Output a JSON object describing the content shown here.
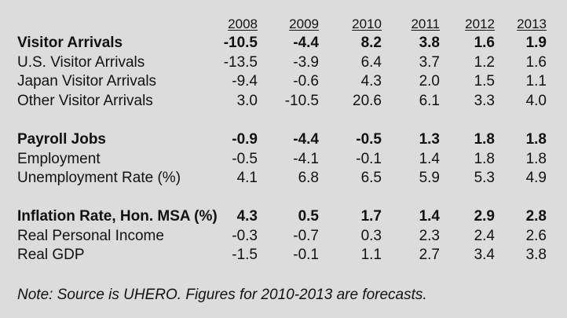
{
  "chart_data": {
    "type": "table",
    "columns": [
      "2008",
      "2009",
      "2010",
      "2011",
      "2012",
      "2013"
    ],
    "groups": [
      {
        "rows": [
          {
            "label": "Visitor Arrivals",
            "bold": true,
            "values": [
              "-10.5",
              "-4.4",
              "8.2",
              "3.8",
              "1.6",
              "1.9"
            ]
          },
          {
            "label": "U.S. Visitor Arrivals",
            "bold": false,
            "values": [
              "-13.5",
              "-3.9",
              "6.4",
              "3.7",
              "1.2",
              "1.6"
            ]
          },
          {
            "label": "Japan Visitor Arrivals",
            "bold": false,
            "values": [
              "-9.4",
              "-0.6",
              "4.3",
              "2.0",
              "1.5",
              "1.1"
            ]
          },
          {
            "label": "Other Visitor Arrivals",
            "bold": false,
            "values": [
              "3.0",
              "-10.5",
              "20.6",
              "6.1",
              "3.3",
              "4.0"
            ]
          }
        ]
      },
      {
        "rows": [
          {
            "label": "Payroll Jobs",
            "bold": true,
            "values": [
              "-0.9",
              "-4.4",
              "-0.5",
              "1.3",
              "1.8",
              "1.8"
            ]
          },
          {
            "label": "Employment",
            "bold": false,
            "values": [
              "-0.5",
              "-4.1",
              "-0.1",
              "1.4",
              "1.8",
              "1.8"
            ]
          },
          {
            "label": "Unemployment Rate (%)",
            "bold": false,
            "values": [
              "4.1",
              "6.8",
              "6.5",
              "5.9",
              "5.3",
              "4.9"
            ]
          }
        ]
      },
      {
        "rows": [
          {
            "label": "Inflation Rate, Hon. MSA (%)",
            "bold": true,
            "values": [
              "4.3",
              "0.5",
              "1.7",
              "1.4",
              "2.9",
              "2.8"
            ]
          },
          {
            "label": "Real Personal Income",
            "bold": false,
            "values": [
              "-0.3",
              "-0.7",
              "0.3",
              "2.3",
              "2.4",
              "2.6"
            ]
          },
          {
            "label": "Real GDP",
            "bold": false,
            "values": [
              "-1.5",
              "-0.1",
              "1.1",
              "2.7",
              "3.4",
              "3.8"
            ]
          }
        ]
      }
    ],
    "note": "Note: Source is UHERO. Figures for 2010-2013 are forecasts."
  },
  "style": {
    "background": "#dcdcdc",
    "text_color": "#111111"
  }
}
